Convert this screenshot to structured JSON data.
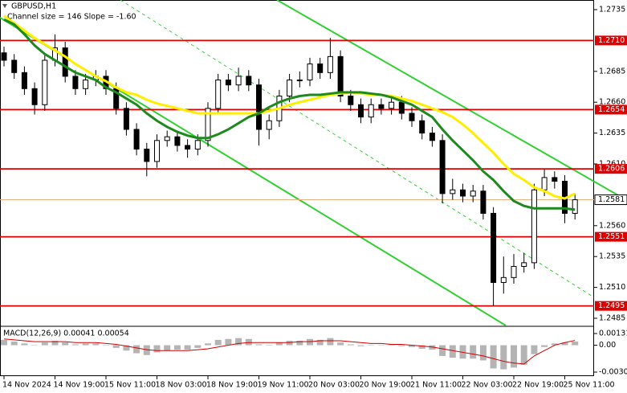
{
  "chart_data": {
    "type": "candlestick",
    "title": "GBPUSD,H1",
    "subtitle": "Channel size = 146 Slope = -1.60",
    "categories": [
      "14 Nov 2024",
      null,
      null,
      null,
      null,
      "14 Nov 19:00",
      null,
      null,
      null,
      null,
      "15 Nov 11:00",
      null,
      null,
      null,
      null,
      "18 Nov 03:00",
      null,
      null,
      null,
      null,
      "18 Nov 19:00",
      null,
      null,
      null,
      null,
      "19 Nov 11:00",
      null,
      null,
      null,
      null,
      "20 Nov 03:00",
      null,
      null,
      null,
      null,
      "20 Nov 19:00",
      null,
      null,
      null,
      null,
      "21 Nov 11:00",
      null,
      null,
      null,
      null,
      "22 Nov 03:00",
      null,
      null,
      null,
      null,
      "22 Nov 19:00",
      null,
      null,
      null,
      null,
      "25 Nov 11:00",
      null
    ],
    "open": [
      1.27,
      1.2694,
      1.2684,
      1.2671,
      1.2658,
      1.2694,
      1.2704,
      1.2681,
      1.2671,
      1.2678,
      1.2681,
      1.2671,
      1.2655,
      1.2638,
      1.2622,
      1.2612,
      1.2629,
      1.2632,
      1.2625,
      1.2622,
      1.2629,
      1.2655,
      1.2678,
      1.2674,
      1.2681,
      1.2674,
      1.2638,
      1.2645,
      1.2665,
      1.2678,
      1.2678,
      1.2691,
      1.2684,
      1.2697,
      1.2665,
      1.2658,
      1.2648,
      1.2658,
      1.2655,
      1.266,
      1.2651,
      1.2645,
      1.2635,
      1.2629,
      1.2586,
      1.2589,
      1.2584,
      1.2588,
      1.257,
      1.2514,
      1.2518,
      1.2527,
      1.253,
      1.2589,
      1.2599,
      1.2596,
      1.257
    ],
    "high": [
      1.2705,
      1.2699,
      1.2689,
      1.2676,
      1.2699,
      1.2715,
      1.2709,
      1.2686,
      1.2683,
      1.2686,
      1.2686,
      1.2676,
      1.266,
      1.2643,
      1.2627,
      1.2634,
      1.2637,
      1.2637,
      1.263,
      1.2634,
      1.266,
      1.2683,
      1.2683,
      1.2688,
      1.2686,
      1.2679,
      1.265,
      1.267,
      1.2683,
      1.2685,
      1.2696,
      1.2696,
      1.2712,
      1.2702,
      1.267,
      1.2663,
      1.2663,
      1.2663,
      1.2665,
      1.2665,
      1.2656,
      1.265,
      1.264,
      1.2634,
      1.2598,
      1.2594,
      1.2593,
      1.2593,
      1.2575,
      1.2535,
      1.2537,
      1.2538,
      1.2594,
      1.2606,
      1.2604,
      1.2601,
      1.2586
    ],
    "low": [
      1.2689,
      1.2679,
      1.2666,
      1.265,
      1.2653,
      1.2689,
      1.2676,
      1.2666,
      1.2666,
      1.2673,
      1.2666,
      1.265,
      1.2633,
      1.2617,
      1.26,
      1.2607,
      1.2624,
      1.262,
      1.2615,
      1.2617,
      1.2624,
      1.265,
      1.2669,
      1.2669,
      1.2669,
      1.2625,
      1.263,
      1.264,
      1.266,
      1.2672,
      1.2673,
      1.2679,
      1.2679,
      1.266,
      1.2653,
      1.2643,
      1.2643,
      1.265,
      1.265,
      1.2646,
      1.264,
      1.263,
      1.2624,
      1.2578,
      1.2581,
      1.2579,
      1.2579,
      1.2565,
      1.2495,
      1.2505,
      1.2513,
      1.2522,
      1.2525,
      1.2584,
      1.259,
      1.2562,
      1.2565
    ],
    "close": [
      1.2694,
      1.2684,
      1.2671,
      1.2658,
      1.2694,
      1.2704,
      1.2681,
      1.2671,
      1.2678,
      1.2681,
      1.2671,
      1.2655,
      1.2638,
      1.2622,
      1.2612,
      1.2629,
      1.2632,
      1.2625,
      1.2622,
      1.2629,
      1.2655,
      1.2678,
      1.2674,
      1.2681,
      1.2674,
      1.2638,
      1.2645,
      1.2665,
      1.2678,
      1.2678,
      1.2691,
      1.2684,
      1.2697,
      1.2665,
      1.2658,
      1.2648,
      1.2658,
      1.2655,
      1.266,
      1.2651,
      1.2645,
      1.2635,
      1.2629,
      1.2586,
      1.2589,
      1.2584,
      1.2588,
      1.257,
      1.2514,
      1.2518,
      1.2527,
      1.253,
      1.2589,
      1.2599,
      1.2596,
      1.257,
      1.2581
    ],
    "candle_color": "#000000",
    "series": [
      {
        "color": "#ffee00",
        "values": [
          1.273,
          1.2724,
          1.2718,
          1.2712,
          1.2707,
          1.2702,
          1.2697,
          1.2691,
          1.2686,
          1.2681,
          1.2677,
          1.2672,
          1.2668,
          1.2666,
          1.2662,
          1.2659,
          1.2657,
          1.2655,
          1.2653,
          1.2651,
          1.2651,
          1.2651,
          1.2651,
          1.2651,
          1.2651,
          1.2651,
          1.2653,
          1.2655,
          1.2658,
          1.266,
          1.2662,
          1.2664,
          1.2666,
          1.2667,
          1.2668,
          1.2667,
          1.2666,
          1.2666,
          1.2665,
          1.2663,
          1.2661,
          1.2658,
          1.2655,
          1.2652,
          1.2648,
          1.2642,
          1.2635,
          1.2627,
          1.2619,
          1.261,
          1.2602,
          1.2597,
          1.2591,
          1.2588,
          1.2584,
          1.2582,
          1.2586
        ]
      },
      {
        "color": "#1e8a1e",
        "values": [
          1.2727,
          1.2723,
          1.2715,
          1.2706,
          1.2699,
          1.2694,
          1.2689,
          1.2684,
          1.2681,
          1.2678,
          1.2672,
          1.2668,
          1.2663,
          1.2658,
          1.2651,
          1.2645,
          1.264,
          1.2636,
          1.2633,
          1.2631,
          1.2631,
          1.2634,
          1.2638,
          1.2643,
          1.2648,
          1.2651,
          1.2656,
          1.266,
          1.2663,
          1.2665,
          1.2666,
          1.2666,
          1.2667,
          1.2668,
          1.2668,
          1.2668,
          1.2667,
          1.2666,
          1.2664,
          1.2661,
          1.2658,
          1.2653,
          1.2648,
          1.2638,
          1.2629,
          1.2621,
          1.2613,
          1.2604,
          1.2597,
          1.2588,
          1.258,
          1.2576,
          1.2574,
          1.2574,
          1.2574,
          1.2574,
          1.2573
        ]
      }
    ],
    "ylim": [
      1.24785,
      1.27428
    ],
    "yticks": [
      1.2735,
      1.2685,
      {
        "value": 1.266,
        "label": "1.2660"
      },
      1.2635,
      {
        "value": 1.261,
        "label": "1.2610"
      },
      {
        "value": 1.256,
        "label": "1.2560"
      },
      1.2535,
      {
        "value": 1.251,
        "label": "1.2510"
      },
      1.2485
    ],
    "levels": [
      {
        "value": 1.271,
        "label": "1.2710"
      },
      1.2654,
      1.2606,
      1.2551,
      1.2495
    ],
    "levels_color": "#e00000",
    "last_price": 1.2581,
    "macd": {
      "label": "MACD(12,26,9) 0.00041 0.00054",
      "histogram": [
        0.0006,
        0.0004,
        0.0002,
        0.0,
        0.0003,
        0.0005,
        0.0003,
        0.0001,
        0.0002,
        0.0002,
        0.0,
        -0.0003,
        -0.0006,
        -0.0009,
        -0.0011,
        -0.0008,
        -0.0006,
        -0.0005,
        -0.0005,
        -0.0003,
        0.0002,
        0.0006,
        0.0007,
        0.0008,
        0.0007,
        0.0001,
        0.0,
        0.0003,
        0.0005,
        0.0005,
        0.0007,
        0.0006,
        0.0008,
        0.0003,
        0.0001,
        -0.0001,
        0.0,
        0.0,
        0.0001,
        -0.0001,
        -0.0002,
        -0.0004,
        -0.0005,
        -0.0012,
        -0.0014,
        -0.0015,
        -0.0015,
        -0.0017,
        -0.0026,
        -0.0027,
        -0.0025,
        -0.0022,
        -0.001,
        -0.0002,
        0.0002,
        0.0003,
        0.00041
      ],
      "histogram_color": "#b4b4b4",
      "signal": [
        0.0007,
        0.0006,
        0.0005,
        0.0004,
        0.0004,
        0.0004,
        0.0004,
        0.0003,
        0.0003,
        0.0003,
        0.0002,
        0.0001,
        -0.0001,
        -0.0003,
        -0.0005,
        -0.0006,
        -0.0006,
        -0.0006,
        -0.0006,
        -0.0005,
        -0.0004,
        -0.0002,
        0.0,
        0.0002,
        0.0003,
        0.0003,
        0.0003,
        0.0003,
        0.0003,
        0.0004,
        0.0004,
        0.0005,
        0.0005,
        0.0005,
        0.0004,
        0.0003,
        0.0002,
        0.0002,
        0.0001,
        0.0001,
        0.0,
        -0.0001,
        -0.0002,
        -0.0004,
        -0.0006,
        -0.0008,
        -0.001,
        -0.0012,
        -0.0015,
        -0.0018,
        -0.002,
        -0.0021,
        -0.0012,
        -0.0006,
        0.0,
        0.0003,
        0.00054
      ],
      "signal_color": "#d00000",
      "ylim": [
        -0.00301,
        0.00131
      ],
      "yticks": [
        0.00131,
        {
          "value": 0,
          "label": "0.00"
        },
        -0.00301
      ]
    }
  }
}
